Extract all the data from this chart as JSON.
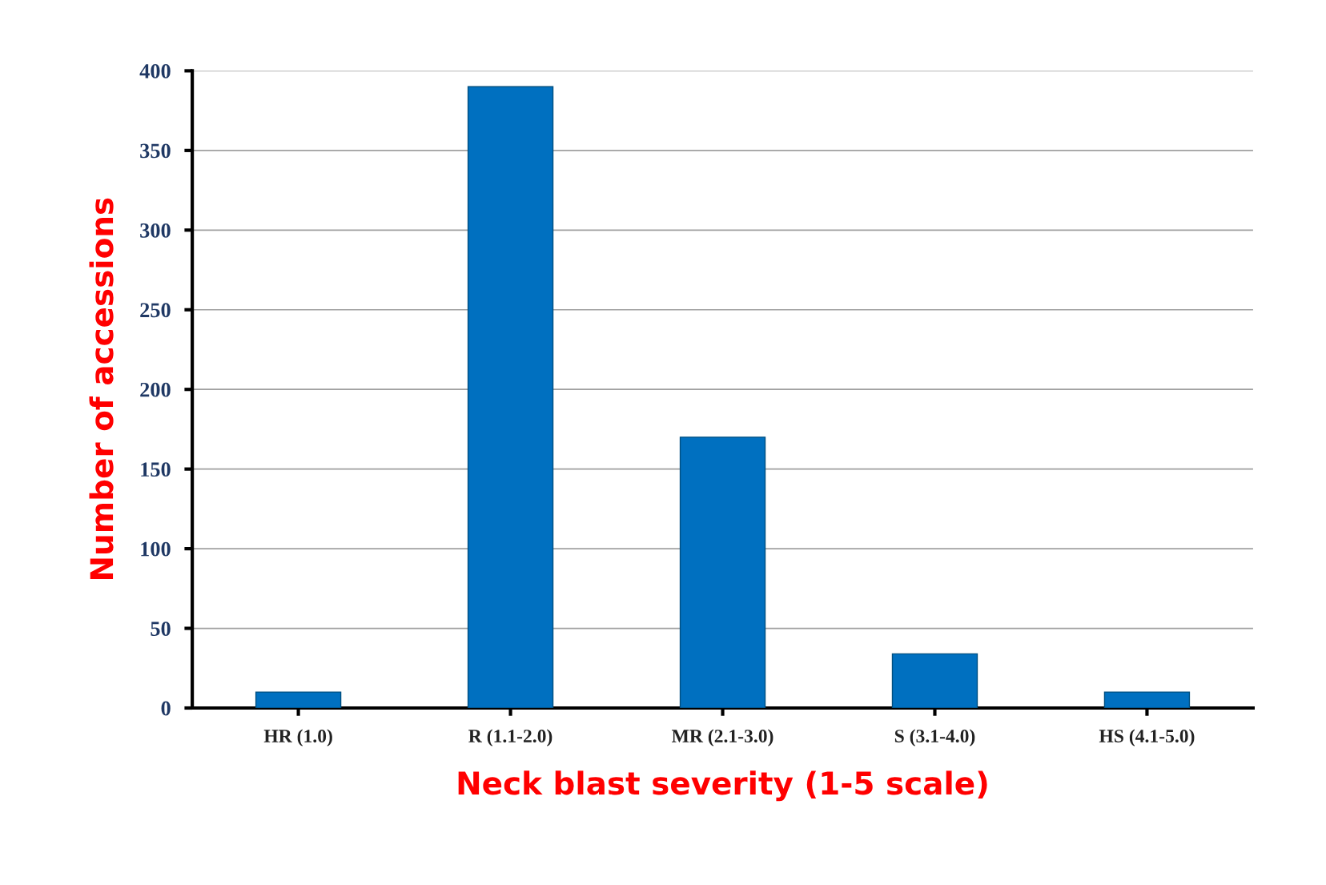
{
  "chart_data": {
    "type": "bar",
    "xlabel": "Neck blast severity (1-5 scale)",
    "ylabel": "Number of accessions",
    "categories": [
      "HR (1.0)",
      "R (1.1-2.0)",
      "MR (2.1-3.0)",
      "S (3.1-4.0)",
      "HS (4.1-5.0)"
    ],
    "values": [
      10,
      390,
      170,
      34,
      10
    ],
    "color": "#0070c0",
    "ylim": [
      0,
      400
    ],
    "yticks": [
      0,
      50,
      100,
      150,
      200,
      250,
      300,
      350,
      400
    ],
    "grid": "y",
    "legend": false
  }
}
